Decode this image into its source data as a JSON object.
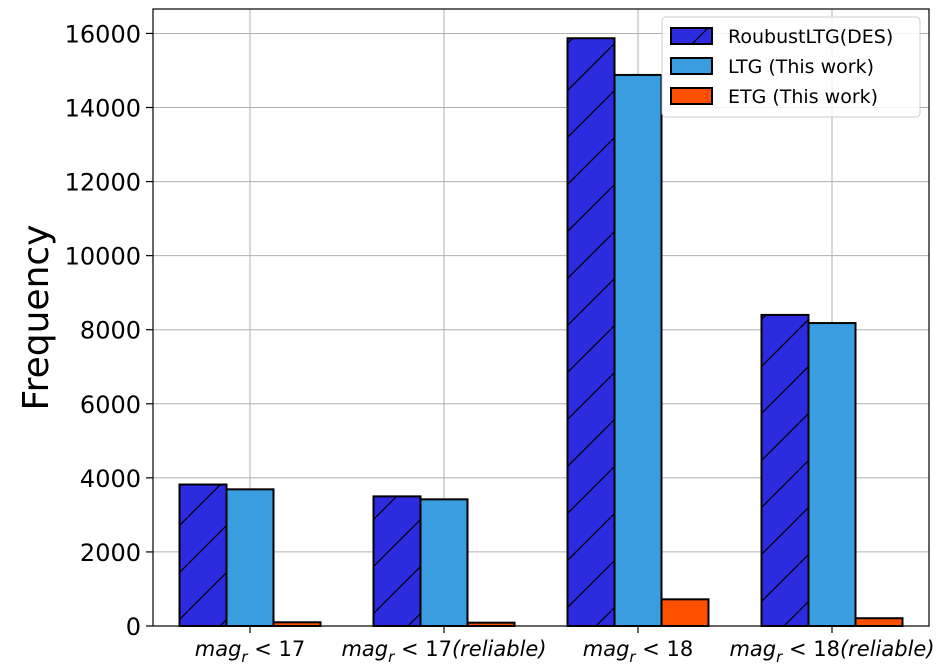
{
  "chart_data": {
    "type": "bar",
    "categories": [
      "mag_r < 17",
      "mag_r < 17(reliable)",
      "mag_r < 18",
      "mag_r < 18(reliable)"
    ],
    "category_parts": [
      {
        "base": "mag",
        "sub": "r",
        "rest": " < 17"
      },
      {
        "base": "mag",
        "sub": "r",
        "rest": " < 17(reliable)"
      },
      {
        "base": "mag",
        "sub": "r",
        "rest": " < 18"
      },
      {
        "base": "mag",
        "sub": "r",
        "rest": " < 18(reliable)"
      }
    ],
    "series": [
      {
        "name": "RoubustLTG(DES)",
        "values": [
          3820,
          3500,
          15870,
          8400
        ],
        "color": "#2d2be0",
        "hatch": true
      },
      {
        "name": "LTG (This work)",
        "values": [
          3690,
          3420,
          14880,
          8180
        ],
        "color": "#3a9de0",
        "hatch": false
      },
      {
        "name": "ETG (This work)",
        "values": [
          100,
          90,
          720,
          210
        ],
        "color": "#ff5000",
        "hatch": false
      }
    ],
    "title": "",
    "xlabel": "",
    "ylabel": "Frequency",
    "ylim": [
      0,
      16660
    ],
    "yticks": [
      0,
      2000,
      4000,
      6000,
      8000,
      10000,
      12000,
      14000,
      16000
    ],
    "grid": true,
    "legend_position": "top-right"
  }
}
